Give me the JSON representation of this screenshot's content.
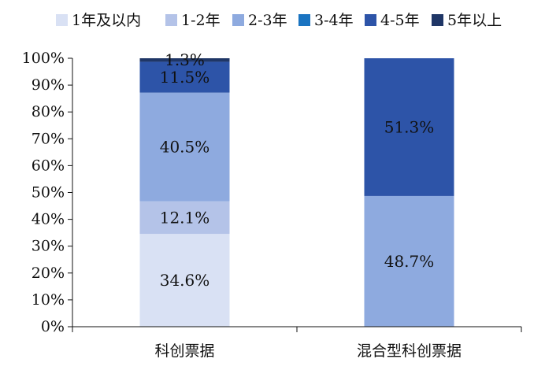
{
  "chart_data": {
    "type": "bar",
    "stacked": true,
    "categories": [
      "科创票据",
      "混合型科创票据"
    ],
    "series": [
      {
        "name": "1年及以内",
        "color": "#d9e1f4",
        "values": [
          34.6,
          0
        ]
      },
      {
        "name": "1-2年",
        "color": "#b4c3e8",
        "values": [
          12.1,
          0
        ]
      },
      {
        "name": "2-3年",
        "color": "#8eaadf",
        "values": [
          40.5,
          48.7
        ]
      },
      {
        "name": "3-4年",
        "color": "#1a74c1",
        "values": [
          0,
          0
        ]
      },
      {
        "name": "4-5年",
        "color": "#2d54a8",
        "values": [
          11.5,
          51.3
        ]
      },
      {
        "name": "5年以上",
        "color": "#1f3666",
        "values": [
          1.3,
          0
        ]
      }
    ],
    "data_labels": [
      [
        "34.6%",
        ""
      ],
      [
        "12.1%",
        ""
      ],
      [
        "40.5%",
        "48.7%"
      ],
      [
        "",
        ""
      ],
      [
        "11.5%",
        "51.3%"
      ],
      [
        "1.3%",
        ""
      ]
    ],
    "yticks": [
      "0%",
      "10%",
      "20%",
      "30%",
      "40%",
      "50%",
      "60%",
      "70%",
      "80%",
      "90%",
      "100%"
    ],
    "ylim": [
      0,
      100
    ],
    "legend_position": "top",
    "grid": false
  }
}
